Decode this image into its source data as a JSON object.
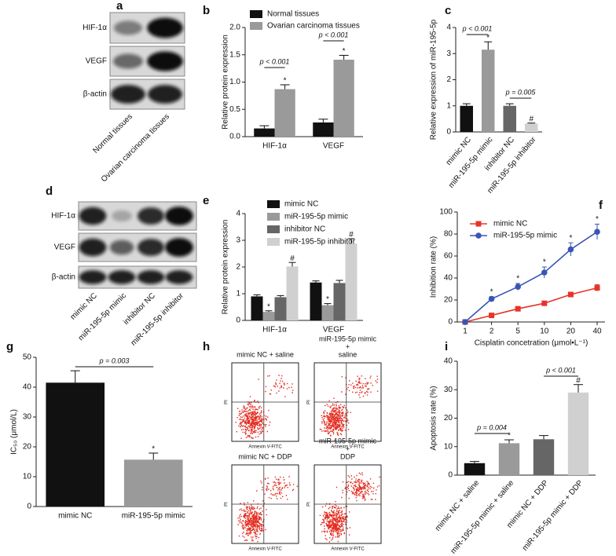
{
  "blots": [
    {
      "letter": "a",
      "rows": [
        "HIF-1α",
        "VEGF",
        "β-actin"
      ],
      "lanes": [
        "Normal tissues",
        "Ovarian carcinoma tissues"
      ]
    },
    {
      "letter": "d",
      "rows": [
        "HIF-1α",
        "VEGF",
        "β-actin"
      ],
      "lanes": [
        "mimic NC",
        "miR-195-5p mimic",
        "inhibitor NC",
        "miR-195-5p inhibitor"
      ]
    }
  ],
  "flow": {
    "letter": "h",
    "xlabel": "Annexin V-FITC",
    "ylabel": "PI",
    "plots": [
      [
        "mimic NC + saline"
      ],
      [
        "miR-195-5p mimic",
        "+",
        "saline"
      ],
      [
        "mimic NC + DDP"
      ],
      [
        "miR-195-5p mimic",
        "+",
        "DDP"
      ]
    ]
  },
  "chart_data": [
    {
      "type": "bar",
      "letter": "b",
      "ylabel": "Relative protein expression",
      "ylim": [
        0,
        2
      ],
      "yticks": [
        {
          "value": 0,
          "label": "0.0"
        },
        {
          "value": 0.5,
          "label": "0.5"
        },
        {
          "value": 1,
          "label": "1.0"
        },
        {
          "value": 1.5,
          "label": "1.5"
        },
        {
          "value": 2,
          "label": "2.0"
        }
      ],
      "categories": [
        "HIF-1α",
        "VEGF"
      ],
      "series": [
        {
          "name": "Normal tissues",
          "color": "#111111",
          "values": [
            0.15,
            0.26
          ],
          "errors": [
            0.05,
            0.06
          ]
        },
        {
          "name": "Ovarian carcinoma tissues",
          "color": "#9a9a9a",
          "values": [
            0.87,
            1.41
          ],
          "errors": [
            0.08,
            0.08
          ],
          "labels": [
            "*",
            "*"
          ]
        }
      ],
      "comparisons": [
        "p < 0.001",
        "p < 0.001"
      ]
    },
    {
      "type": "bar",
      "letter": "c",
      "ylabel": "Relative expression of miR-195-5p",
      "ylim": [
        0,
        4
      ],
      "yticks": [
        0,
        1,
        2,
        3,
        4
      ],
      "categories": [
        "mimic NC",
        "miR-195-5p mimic",
        "inhibitor NC",
        "miR-195-5p inhibitor"
      ],
      "series": [
        {
          "colors": [
            "#111111",
            "#9a9a9a",
            "#666666",
            "#d0d0d0"
          ],
          "values": [
            1.0,
            3.15,
            1.0,
            0.32
          ],
          "errors": [
            0.08,
            0.3,
            0.08,
            0.02
          ],
          "labels": [
            null,
            "*",
            null,
            "#"
          ]
        }
      ],
      "comparisons": [
        "p < 0.001",
        "p = 0.005"
      ]
    },
    {
      "type": "bar",
      "letter": "e",
      "ylabel": "Relative protein expression",
      "ylim": [
        0,
        4
      ],
      "yticks": [
        0,
        1,
        2,
        3,
        4
      ],
      "categories": [
        "HIF-1α",
        "VEGF"
      ],
      "series": [
        {
          "name": "mimic NC",
          "color": "#111111",
          "values": [
            0.9,
            1.42
          ],
          "errors": [
            0.06,
            0.06
          ]
        },
        {
          "name": "miR-195-5p mimic",
          "color": "#9a9a9a",
          "values": [
            0.32,
            0.57
          ],
          "errors": [
            0.04,
            0.06
          ],
          "labels": [
            "*",
            "*"
          ]
        },
        {
          "name": "inhibitor NC",
          "color": "#666666",
          "values": [
            0.87,
            1.4
          ],
          "errors": [
            0.06,
            0.1
          ]
        },
        {
          "name": "miR-195-5p inhibitor",
          "color": "#d0d0d0",
          "values": [
            2.02,
            2.88
          ],
          "errors": [
            0.15,
            0.18
          ],
          "labels": [
            "#",
            "#"
          ]
        }
      ]
    },
    {
      "type": "line",
      "letter": "f",
      "ylabel": "Inhibition rate (%)",
      "xlabel": "Cisplatin concetration (μmol•L⁻¹)",
      "ylim": [
        0,
        100
      ],
      "yticks": [
        0,
        20,
        40,
        60,
        80,
        100
      ],
      "categories": [
        "1",
        "2",
        "5",
        "10",
        "20",
        "40"
      ],
      "series": [
        {
          "name": "mimic NC",
          "color": "#e8332a",
          "marker": "square",
          "values": [
            0,
            6,
            12,
            17,
            25,
            31
          ],
          "errors": [
            0,
            1,
            1,
            1.5,
            2,
            3
          ]
        },
        {
          "name": "miR-195-5p mimic",
          "color": "#3a55b4",
          "marker": "circle",
          "values": [
            0,
            21,
            32,
            45,
            66,
            82
          ],
          "errors": [
            0,
            2,
            3,
            5,
            6,
            7
          ],
          "labels": [
            null,
            "*",
            "*",
            "*",
            "*",
            "*"
          ]
        }
      ]
    },
    {
      "type": "bar",
      "letter": "g",
      "ylabel": "IC₅₀ (μmol/L)",
      "ylim": [
        0,
        50
      ],
      "yticks": [
        0,
        10,
        20,
        30,
        40,
        50
      ],
      "categories": [
        "mimic NC",
        "miR-195-5p mimic"
      ],
      "series": [
        {
          "colors": [
            "#111111",
            "#9a9a9a"
          ],
          "values": [
            41.5,
            15.7
          ],
          "errors": [
            4,
            2.2
          ],
          "labels": [
            null,
            "*"
          ]
        }
      ],
      "comparisons": [
        "p = 0.003"
      ]
    },
    {
      "type": "bar",
      "letter": "i",
      "ylabel": "Apoptosis rate (%)",
      "ylim": [
        0,
        40
      ],
      "yticks": [
        0,
        10,
        20,
        30,
        40
      ],
      "categories": [
        "mimic NC + saline",
        "miR-195-5p mimic + saline",
        "mimic NC + DDP",
        "miR-195-5p mimic + DDP"
      ],
      "series": [
        {
          "colors": [
            "#111111",
            "#9a9a9a",
            "#666666",
            "#d0d0d0"
          ],
          "values": [
            4.2,
            11.2,
            12.6,
            29
          ],
          "errors": [
            0.6,
            1.2,
            1.3,
            2.8
          ],
          "labels": [
            null,
            "*",
            null,
            "#"
          ]
        }
      ],
      "comparisons": [
        "p = 0.004",
        "p < 0.001"
      ]
    }
  ]
}
